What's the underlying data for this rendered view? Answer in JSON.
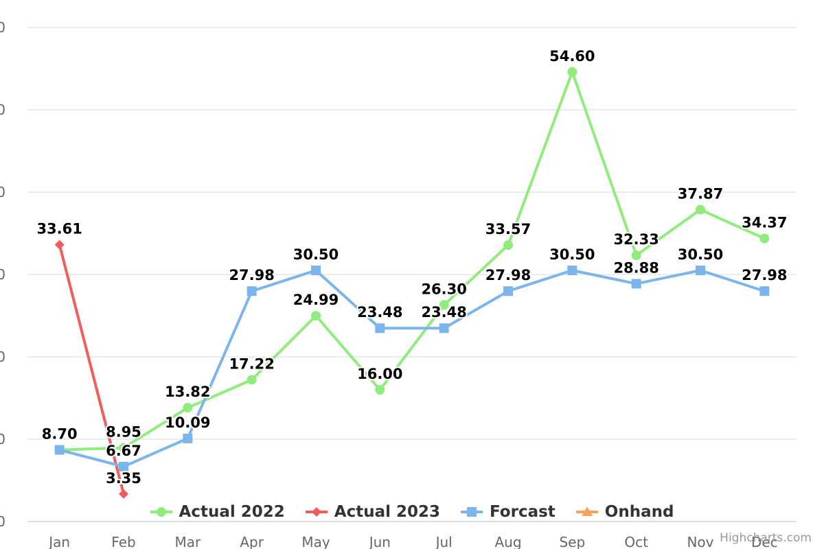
{
  "chart_data": {
    "type": "line",
    "categories": [
      "Jan",
      "Feb",
      "Mar",
      "Apr",
      "May",
      "Jun",
      "Jul",
      "Aug",
      "Sep",
      "Oct",
      "Nov",
      "Dec"
    ],
    "y_tick_labels": [
      "0",
      "0",
      "0",
      "0",
      "0",
      "0",
      "0"
    ],
    "ylim": [
      0,
      60
    ],
    "grid": true,
    "legend_position": "bottom",
    "series": [
      {
        "name": "Actual 2022",
        "color": "#90ed7d",
        "marker": "circle",
        "values": [
          8.7,
          8.95,
          13.82,
          17.22,
          24.99,
          16.0,
          26.3,
          33.57,
          54.6,
          32.33,
          37.87,
          34.37
        ]
      },
      {
        "name": "Actual 2023",
        "color": "#f45b5b",
        "marker": "diamond",
        "values": [
          33.61,
          3.35,
          null,
          null,
          null,
          null,
          null,
          null,
          null,
          null,
          null,
          null
        ]
      },
      {
        "name": "Forcast",
        "color": "#7cb5ec",
        "marker": "square",
        "values": [
          8.7,
          6.67,
          10.09,
          27.98,
          30.5,
          23.48,
          23.48,
          27.98,
          30.5,
          28.88,
          30.5,
          27.98
        ]
      },
      {
        "name": "Onhand",
        "color": "#f7a35c",
        "marker": "triangle",
        "values": [
          null,
          null,
          null,
          null,
          null,
          null,
          null,
          null,
          null,
          null,
          null,
          null
        ]
      }
    ]
  },
  "credits": "Highcharts.com"
}
